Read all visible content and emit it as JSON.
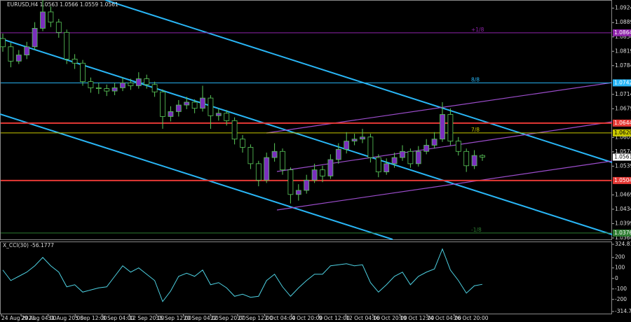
{
  "chart_data": {
    "type": "candlestick",
    "title": "EURUSD,H4  1.0563 1.0566 1.0559 1.0561",
    "open": [
      1.085,
      1.083,
      1.0795,
      1.081,
      1.083,
      1.0875,
      1.0915,
      1.089,
      1.0865,
      1.08,
      1.079,
      1.0745,
      1.073,
      1.0728,
      1.0722,
      1.073,
      1.0742,
      1.0735,
      1.0752,
      1.0738,
      1.072,
      1.066,
      1.0672,
      1.0688,
      1.0695,
      1.068,
      1.0705,
      1.0662,
      1.0668,
      1.065,
      1.0605,
      1.0585,
      1.0545,
      1.0505,
      1.056,
      1.0575,
      1.053,
      1.047,
      1.048,
      1.0505,
      1.053,
      1.0515,
      1.0555,
      1.058,
      1.06,
      1.0605,
      1.061,
      1.056,
      1.0525,
      1.0545,
      1.056,
      1.0575,
      1.0545,
      1.0575,
      1.059,
      1.0605,
      1.0665,
      1.06,
      1.0575,
      1.054,
      1.0565
    ],
    "high": [
      1.0862,
      1.084,
      1.0822,
      1.0842,
      1.089,
      1.0945,
      1.0928,
      1.0898,
      1.0872,
      1.0812,
      1.0798,
      1.0755,
      1.0742,
      1.0738,
      1.0742,
      1.0755,
      1.0752,
      1.0768,
      1.0762,
      1.0745,
      1.0726,
      1.0685,
      1.07,
      1.0708,
      1.0702,
      1.0735,
      1.0712,
      1.068,
      1.0676,
      1.0658,
      1.0615,
      1.0592,
      1.0552,
      1.0572,
      1.0595,
      1.0582,
      1.0536,
      1.0495,
      1.0518,
      1.0545,
      1.054,
      1.0568,
      1.0595,
      1.0622,
      1.0618,
      1.063,
      1.0618,
      1.0568,
      1.0558,
      1.0572,
      1.059,
      1.0582,
      1.0588,
      1.0605,
      1.0622,
      1.0695,
      1.068,
      1.061,
      1.0582,
      1.0578,
      1.0568
    ],
    "low": [
      1.0818,
      1.078,
      1.0788,
      1.08,
      1.0822,
      1.0868,
      1.0878,
      1.0852,
      1.0788,
      1.0776,
      1.0735,
      1.0718,
      1.0715,
      1.071,
      1.0712,
      1.0722,
      1.0725,
      1.0728,
      1.0728,
      1.0708,
      1.063,
      1.0648,
      1.066,
      1.0678,
      1.0668,
      1.0672,
      1.063,
      1.065,
      1.0638,
      1.0592,
      1.0572,
      1.0532,
      1.049,
      1.0498,
      1.055,
      1.0518,
      1.0448,
      1.0455,
      1.0472,
      1.0498,
      1.05,
      1.0508,
      1.0545,
      1.057,
      1.059,
      1.0595,
      1.0548,
      1.0512,
      1.0518,
      1.0535,
      1.0552,
      1.0535,
      1.0538,
      1.0568,
      1.0582,
      1.0598,
      1.059,
      1.0565,
      1.0525,
      1.0532,
      1.0552
    ],
    "close": [
      1.083,
      1.0795,
      1.081,
      1.083,
      1.0875,
      1.0915,
      1.089,
      1.0865,
      1.08,
      1.079,
      1.0745,
      1.073,
      1.0728,
      1.0722,
      1.073,
      1.0742,
      1.0735,
      1.0752,
      1.0738,
      1.072,
      1.066,
      1.0672,
      1.0688,
      1.0695,
      1.068,
      1.0705,
      1.0662,
      1.0668,
      1.065,
      1.0605,
      1.0585,
      1.0545,
      1.0505,
      1.056,
      1.0575,
      1.053,
      1.047,
      1.048,
      1.0505,
      1.053,
      1.0515,
      1.0555,
      1.058,
      1.06,
      1.0605,
      1.061,
      1.056,
      1.0525,
      1.0545,
      1.056,
      1.0575,
      1.0545,
      1.0575,
      1.059,
      1.0605,
      1.0665,
      1.06,
      1.0575,
      1.054,
      1.0565,
      1.0561
    ],
    "ylim": [
      1.03605,
      1.0944
    ],
    "yticks": [
      1.0924,
      1.0889,
      1.0854,
      1.0819,
      1.0784,
      1.0714,
      1.0679,
      1.0609,
      1.0574,
      1.0539,
      1.0469,
      1.0434,
      1.0399,
      1.0364
    ],
    "levels": [
      {
        "value": 1.0864,
        "color": "#8e24aa",
        "text": "+1/8"
      },
      {
        "value": 1.0742,
        "color": "#29b6f6",
        "text": "8/8"
      },
      {
        "value": 1.0644,
        "color": "#e53935"
      },
      {
        "value": 1.062,
        "label": "1.0620",
        "color": "#c8c800",
        "text": "7/8"
      },
      {
        "value": 1.0561,
        "color": "#ffffff"
      },
      {
        "value": 1.0504,
        "color": "#e53935"
      },
      {
        "value": 1.0376,
        "color": "#2e7d32",
        "text": "-1/8"
      }
    ],
    "x_labels": [
      "24 Aug 2023",
      "29 Aug 04:00",
      "31 Aug 20:00",
      "5 Sep 12:00",
      "8 Sep 04:00",
      "12 Sep 20:00",
      "15 Sep 12:00",
      "20 Sep 04:00",
      "22 Sep 20:00",
      "27 Sep 12:00",
      "2 Oct 04:00",
      "4 Oct 20:00",
      "9 Oct 12:00",
      "12 Oct 04:00",
      "16 Oct 20:00",
      "19 Oct 12:00",
      "24 Oct 04:00",
      "26 Oct 20:00"
    ],
    "indicator": {
      "title": "X_CCI(30) -56.1777",
      "color": "#4dd0e1",
      "values": [
        80,
        -20,
        20,
        60,
        120,
        200,
        120,
        60,
        -80,
        -60,
        -130,
        -110,
        -90,
        -80,
        20,
        120,
        60,
        100,
        40,
        -20,
        -220,
        -120,
        20,
        50,
        20,
        80,
        -60,
        -40,
        -90,
        -170,
        -150,
        -180,
        -170,
        -20,
        40,
        -80,
        -170,
        -90,
        -20,
        40,
        40,
        120,
        130,
        140,
        120,
        130,
        -40,
        -130,
        -60,
        20,
        60,
        -60,
        20,
        60,
        90,
        280,
        80,
        -20,
        -140,
        -70,
        -56.1777
      ],
      "ylim": [
        -314.7586,
        324.8172
      ],
      "yticks": [
        324.8172,
        200,
        100,
        0,
        -100,
        -200,
        -314.7586
      ]
    }
  }
}
